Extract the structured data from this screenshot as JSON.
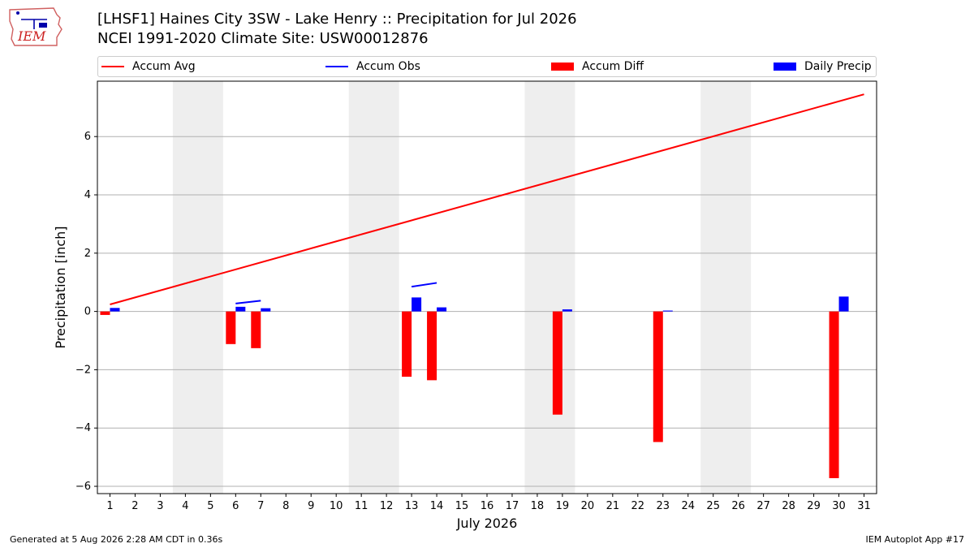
{
  "header": {
    "title_line1": "[LHSF1] Haines City 3SW - Lake Henry :: Precipitation for Jul 2026",
    "title_line2": "NCEI 1991-2020 Climate Site: USW00012876",
    "logo_text": "IEM"
  },
  "footer": {
    "generated": "Generated at 5 Aug 2026 2:28 AM CDT in 0.36s",
    "app": "IEM Autoplot App #17"
  },
  "colors": {
    "accum_avg": "#ff0000",
    "accum_obs": "#0000ff",
    "accum_diff": "#ff0000",
    "daily_precip": "#0000ff",
    "weekend_shade": "#eeeeee",
    "grid": "#b0b0b0"
  },
  "chart_data": {
    "type": "bar",
    "xlabel": "July 2026",
    "ylabel": "Precipitation [inch]",
    "xlim": [
      0.5,
      31.5
    ],
    "ylim": [
      -6.25,
      7.9
    ],
    "x_ticks": [
      1,
      2,
      3,
      4,
      5,
      6,
      7,
      8,
      9,
      10,
      11,
      12,
      13,
      14,
      15,
      16,
      17,
      18,
      19,
      20,
      21,
      22,
      23,
      24,
      25,
      26,
      27,
      28,
      29,
      30,
      31
    ],
    "y_ticks": [
      -6,
      -4,
      -2,
      0,
      2,
      4,
      6
    ],
    "grid": "horizontal",
    "legend_placement": "top",
    "legend": [
      "Accum Avg",
      "Accum Obs",
      "Accum Diff",
      "Daily Precip"
    ],
    "weekend_shading": [
      [
        3.5,
        5.5
      ],
      [
        10.5,
        12.5
      ],
      [
        17.5,
        19.5
      ],
      [
        24.5,
        26.5
      ]
    ],
    "series": [
      {
        "name": "Accum Avg",
        "kind": "line",
        "x": [
          1,
          31
        ],
        "values": [
          0.24,
          7.45
        ]
      },
      {
        "name": "Accum Obs",
        "kind": "segments",
        "segments": [
          {
            "x": [
              6,
              7
            ],
            "values": [
              0.27,
              0.37
            ]
          },
          {
            "x": [
              13,
              14
            ],
            "values": [
              0.85,
              0.98
            ]
          }
        ]
      },
      {
        "name": "Accum Diff",
        "kind": "bar",
        "x": [
          1,
          6,
          7,
          13,
          14,
          19,
          23,
          30
        ],
        "values": [
          -0.12,
          -1.12,
          -1.26,
          -2.24,
          -2.36,
          -3.54,
          -4.48,
          -5.72
        ]
      },
      {
        "name": "Daily Precip",
        "kind": "bar",
        "x": [
          1,
          6,
          7,
          13,
          14,
          19,
          23,
          30
        ],
        "values": [
          0.12,
          0.16,
          0.11,
          0.48,
          0.14,
          0.07,
          0.03,
          0.51
        ]
      }
    ]
  }
}
